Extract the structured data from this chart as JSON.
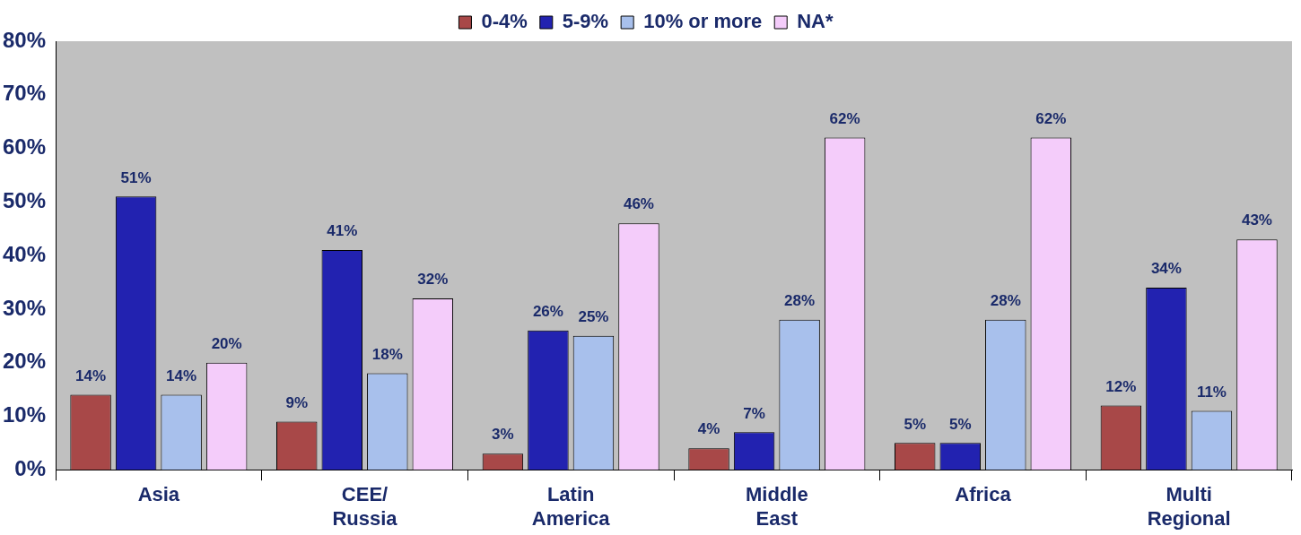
{
  "chart_data": {
    "type": "bar",
    "categories": [
      "Asia",
      "CEE/\nRussia",
      "Latin\nAmerica",
      "Middle\nEast",
      "Africa",
      "Multi\nRegional"
    ],
    "series": [
      {
        "name": "0-4%",
        "color": "#a84848",
        "values": [
          14,
          9,
          3,
          4,
          5,
          12
        ],
        "value_labels": [
          "14%",
          "9%",
          "3%",
          "4%",
          "5%",
          "12%"
        ]
      },
      {
        "name": "5-9%",
        "color": "#2222b0",
        "values": [
          51,
          41,
          26,
          7,
          5,
          34
        ],
        "value_labels": [
          "51%",
          "41%",
          "26%",
          "7%",
          "5%",
          "34%"
        ]
      },
      {
        "name": "10% or more",
        "color": "#a8c0ec",
        "values": [
          14,
          18,
          25,
          28,
          28,
          11
        ],
        "value_labels": [
          "14%",
          "18%",
          "25%",
          "28%",
          "28%",
          "11%"
        ]
      },
      {
        "name": "NA*",
        "color": "#f4ccfa",
        "values": [
          20,
          32,
          46,
          62,
          62,
          43
        ],
        "value_labels": [
          "20%",
          "32%",
          "46%",
          "62%",
          "62%",
          "43%"
        ]
      }
    ],
    "ylim": [
      0,
      80
    ],
    "yticks": [
      {
        "value": 0,
        "label": "0%"
      },
      {
        "value": 10,
        "label": "10%"
      },
      {
        "value": 20,
        "label": "20%"
      },
      {
        "value": 30,
        "label": "30%"
      },
      {
        "value": 40,
        "label": "40%"
      },
      {
        "value": 50,
        "label": "50%"
      },
      {
        "value": 60,
        "label": "60%"
      },
      {
        "value": 70,
        "label": "70%"
      },
      {
        "value": 80,
        "label": "80%"
      }
    ],
    "grid": false,
    "legend": "top"
  }
}
